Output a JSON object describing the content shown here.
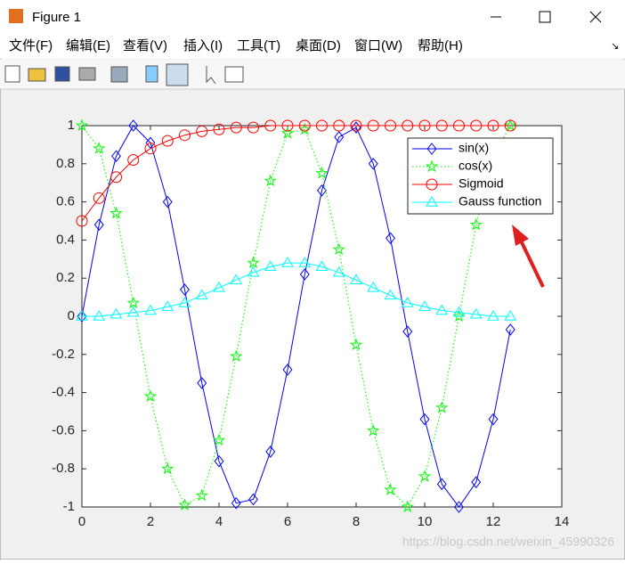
{
  "window": {
    "title": "Figure 1",
    "menu": [
      "文件(F)",
      "编辑(E)",
      "查看(V)",
      "插入(I)",
      "工具(T)",
      "桌面(D)",
      "窗口(W)",
      "帮助(H)"
    ],
    "watermark": "https://blog.csdn.net/weixin_45990326"
  },
  "chart_data": {
    "type": "line",
    "x": [
      0,
      0.5,
      1,
      1.5,
      2,
      2.5,
      3,
      3.5,
      4,
      4.5,
      5,
      5.5,
      6,
      6.5,
      7,
      7.5,
      8,
      8.5,
      9,
      9.5,
      10,
      10.5,
      11,
      11.5,
      12,
      12.5
    ],
    "series": [
      {
        "name": "sin(x)",
        "color": "#0000ff",
        "linestyle": "solid",
        "marker": "diamond",
        "values": [
          0,
          0.48,
          0.84,
          1.0,
          0.91,
          0.6,
          0.14,
          -0.35,
          -0.76,
          -0.98,
          -0.96,
          -0.71,
          -0.28,
          0.22,
          0.66,
          0.94,
          0.99,
          0.8,
          0.41,
          -0.08,
          -0.54,
          -0.88,
          -1.0,
          -0.87,
          -0.54,
          -0.07
        ]
      },
      {
        "name": "cos(x)",
        "color": "#00ff00",
        "linestyle": "dotted",
        "marker": "pentagram",
        "values": [
          1,
          0.88,
          0.54,
          0.07,
          -0.42,
          -0.8,
          -0.99,
          -0.94,
          -0.65,
          -0.21,
          0.28,
          0.71,
          0.96,
          0.98,
          0.75,
          0.35,
          -0.15,
          -0.6,
          -0.91,
          -1.0,
          -0.84,
          -0.48,
          0.0,
          0.48,
          0.84,
          1.0
        ]
      },
      {
        "name": "Sigmoid",
        "color": "#ff0000",
        "linestyle": "solid",
        "marker": "circle",
        "values": [
          0.5,
          0.62,
          0.73,
          0.82,
          0.88,
          0.92,
          0.95,
          0.97,
          0.98,
          0.99,
          0.99,
          1,
          1,
          1,
          1,
          1,
          1,
          1,
          1,
          1,
          1,
          1,
          1,
          1,
          1,
          1
        ]
      },
      {
        "name": "Gauss function",
        "color": "#00ffff",
        "linestyle": "solid",
        "marker": "triangle",
        "values": [
          0,
          0,
          0.01,
          0.02,
          0.03,
          0.05,
          0.07,
          0.11,
          0.15,
          0.19,
          0.23,
          0.26,
          0.28,
          0.28,
          0.26,
          0.23,
          0.19,
          0.15,
          0.11,
          0.07,
          0.05,
          0.03,
          0.02,
          0.01,
          0,
          0
        ]
      }
    ],
    "xlim": [
      0,
      14
    ],
    "xticks": [
      0,
      2,
      4,
      6,
      8,
      10,
      12,
      14
    ],
    "ylim": [
      -1,
      1
    ],
    "yticks": [
      -1,
      -0.8,
      -0.6,
      -0.4,
      -0.2,
      0,
      0.2,
      0.4,
      0.6,
      0.8,
      1
    ],
    "legend": "northeast"
  }
}
